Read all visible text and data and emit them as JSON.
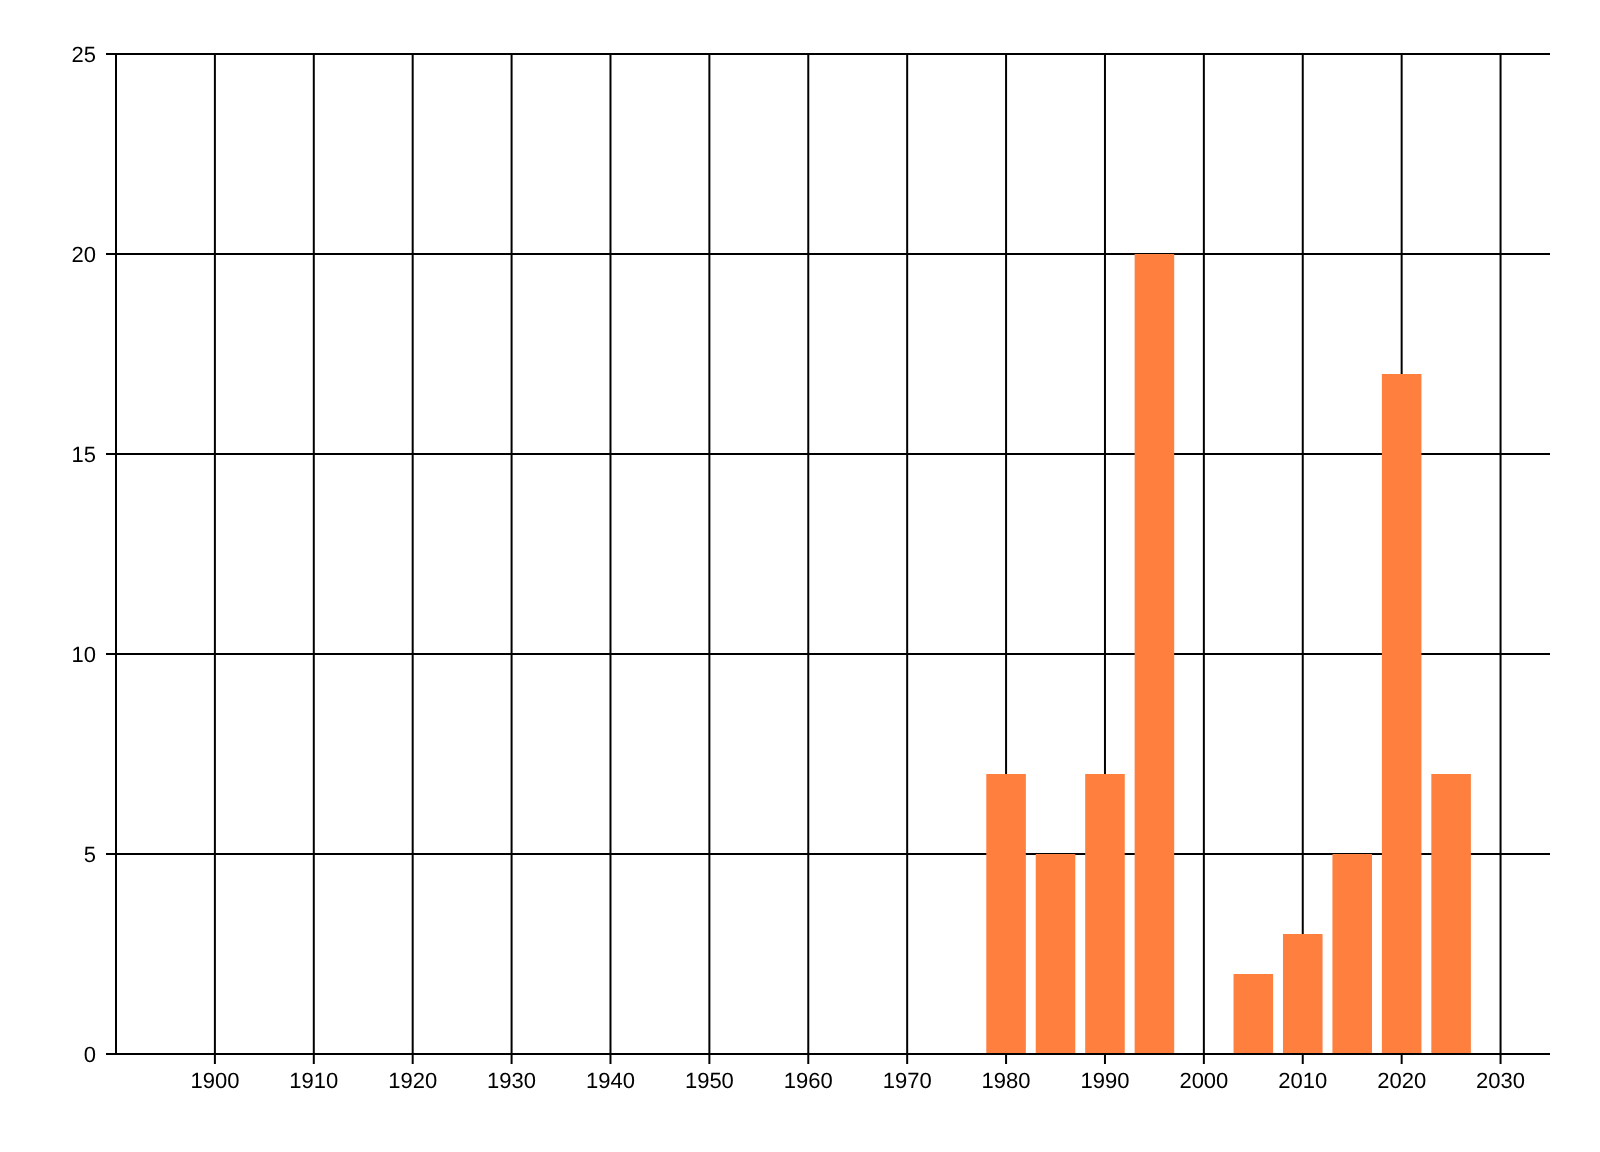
{
  "chart_data": {
    "type": "bar",
    "x": [
      1980,
      1985,
      1990,
      1995,
      2005,
      2010,
      2015,
      2020,
      2025
    ],
    "values": [
      7,
      5,
      7,
      20,
      2,
      3,
      5,
      17,
      7
    ],
    "color": "#ff7f3f",
    "xlim": [
      1890,
      2035
    ],
    "xticks": [
      1900,
      1910,
      1920,
      1930,
      1940,
      1950,
      1960,
      1970,
      1980,
      1990,
      2000,
      2010,
      2020,
      2030
    ],
    "ylim": [
      0,
      25
    ],
    "yticks": [
      0,
      5,
      10,
      15,
      20,
      25
    ],
    "grid": true
  }
}
